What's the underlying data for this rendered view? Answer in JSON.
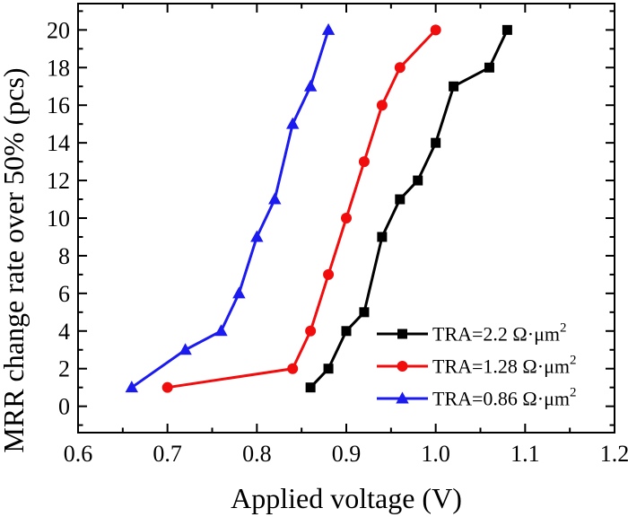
{
  "chart_data": {
    "type": "line",
    "title": "",
    "xlabel": "Applied voltage (V)",
    "ylabel": "MRR change rate over 50% (pcs)",
    "xlim": [
      0.6,
      1.2
    ],
    "ylim": [
      -1.4,
      21.4
    ],
    "grid": false,
    "legend_position": "inside right, lower middle",
    "x_major_ticks": [
      0.6,
      0.7,
      0.8,
      0.9,
      1.0,
      1.1,
      1.2
    ],
    "x_tick_labels": [
      "0.6",
      "0.7",
      "0.8",
      "0.9",
      "1.0",
      "1.1",
      "1.2"
    ],
    "x_minor_ticks": [
      0.65,
      0.75,
      0.85,
      0.95,
      1.05,
      1.15
    ],
    "y_major_ticks": [
      0,
      2,
      4,
      6,
      8,
      10,
      12,
      14,
      16,
      18,
      20
    ],
    "y_tick_labels": [
      "0",
      "2",
      "4",
      "6",
      "8",
      "10",
      "12",
      "14",
      "16",
      "18",
      "20"
    ],
    "y_minor_ticks": [
      -1,
      1,
      3,
      5,
      7,
      9,
      11,
      13,
      15,
      17,
      19,
      21
    ],
    "series": [
      {
        "name": "TRA=2.2 Ω·μm²",
        "color": "#000000",
        "marker": "square",
        "x": [
          0.86,
          0.88,
          0.9,
          0.92,
          0.94,
          0.96,
          0.98,
          1.0,
          1.02,
          1.06,
          1.08
        ],
        "y": [
          1,
          2,
          4,
          5,
          9,
          11,
          12,
          14,
          17,
          18,
          20
        ]
      },
      {
        "name": "TRA=1.28 Ω·μm²",
        "color": "#f10d0d",
        "marker": "circle",
        "x": [
          0.7,
          0.84,
          0.86,
          0.88,
          0.9,
          0.92,
          0.94,
          0.96,
          1.0
        ],
        "y": [
          1,
          2,
          4,
          7,
          10,
          13,
          16,
          18,
          20
        ]
      },
      {
        "name": "TRA=0.86 Ω·μm²",
        "color": "#1b1bef",
        "marker": "triangle-up",
        "x": [
          0.66,
          0.72,
          0.76,
          0.78,
          0.8,
          0.82,
          0.84,
          0.86,
          0.88
        ],
        "y": [
          1,
          3,
          4,
          6,
          9,
          11,
          15,
          17,
          20
        ]
      }
    ]
  }
}
